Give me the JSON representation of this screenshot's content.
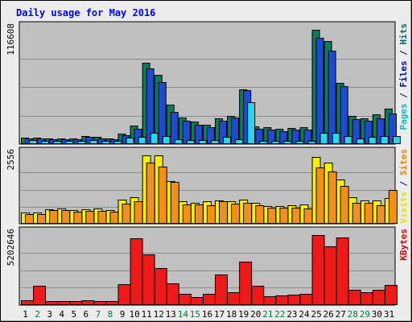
{
  "chart_data": {
    "type": "bar",
    "title": "Daily usage for May 2016",
    "categories": [
      "1",
      "2",
      "3",
      "4",
      "5",
      "6",
      "7",
      "8",
      "9",
      "10",
      "11",
      "12",
      "13",
      "14",
      "15",
      "16",
      "17",
      "18",
      "19",
      "20",
      "21",
      "22",
      "23",
      "24",
      "25",
      "26",
      "27",
      "28",
      "29",
      "30",
      "31"
    ],
    "weekend": [
      false,
      true,
      false,
      false,
      false,
      false,
      true,
      true,
      false,
      false,
      false,
      false,
      false,
      true,
      true,
      false,
      false,
      false,
      false,
      false,
      true,
      true,
      false,
      false,
      false,
      false,
      false,
      true,
      true,
      false,
      false
    ],
    "panels": [
      {
        "name": "pages-files-hits",
        "scale_label": "116608",
        "ymax": 116608,
        "axis_legend": [
          {
            "text": "Hits",
            "color": "#006666"
          },
          {
            "text": " / ",
            "color": "#000080"
          },
          {
            "text": "Files",
            "color": "#0000c0"
          },
          {
            "text": " / ",
            "color": "#000080"
          },
          {
            "text": "Pages",
            "color": "#00c0c0"
          }
        ],
        "series": [
          {
            "name": "Hits",
            "color": "#0e7a5c",
            "values": [
              6700,
              6200,
              6000,
              5500,
              6000,
              8300,
              7200,
              6000,
              10800,
              19000,
              83000,
              71000,
              40000,
              27000,
              23000,
              20000,
              26200,
              28500,
              56000,
              18000,
              17100,
              15200,
              16700,
              17100,
              116600,
              105000,
              62000,
              28500,
              26500,
              30000,
              36000
            ]
          },
          {
            "name": "Files",
            "color": "#1e4bd0",
            "values": [
              6000,
              5500,
              5200,
              4800,
              5200,
              7000,
              6000,
              5200,
              9000,
              16000,
              77000,
              63000,
              33000,
              24000,
              20000,
              17000,
              24000,
              27000,
              55000,
              15300,
              14800,
              12800,
              14800,
              15000,
              108000,
              95000,
              59000,
              25500,
              23700,
              26600,
              31000
            ]
          },
          {
            "name": "Pages",
            "color": "#2ad6ec",
            "values": [
              4300,
              3500,
              3200,
              3000,
              3300,
              4200,
              3300,
              3200,
              6200,
              7700,
              11500,
              8000,
              5000,
              4400,
              4200,
              4500,
              7000,
              4800,
              43000,
              3600,
              3500,
              3000,
              3400,
              3500,
              11900,
              11700,
              8300,
              5600,
              7100,
              8400,
              8600
            ]
          }
        ]
      },
      {
        "name": "visits-sites",
        "scale_label": "2556",
        "ymax": 2556,
        "axis_legend": [
          {
            "text": "Sites",
            "color": "#f08000"
          },
          {
            "text": " / ",
            "color": "#000080"
          },
          {
            "text": "Visits",
            "color": "#e0e000"
          }
        ],
        "series": [
          {
            "name": "Visits",
            "color": "#f8f000",
            "values": [
              420,
              410,
              550,
              560,
              500,
              540,
              570,
              520,
              900,
              1000,
              2550,
              2550,
              1600,
              850,
              790,
              830,
              880,
              840,
              900,
              780,
              650,
              650,
              680,
              730,
              2500,
              2300,
              1650,
              990,
              870,
              880,
              960
            ]
          },
          {
            "name": "Sites",
            "color": "#f0901c",
            "values": [
              360,
              360,
              500,
              500,
              460,
              480,
              470,
              440,
              740,
              850,
              2300,
              2150,
              1550,
              710,
              720,
              700,
              850,
              760,
              780,
              700,
              590,
              590,
              600,
              560,
              2100,
              1950,
              1400,
              790,
              780,
              680,
              1250
            ]
          }
        ]
      },
      {
        "name": "kbytes",
        "scale_label": "5202646",
        "ymax": 5202646,
        "axis_legend": [
          {
            "text": "KBytes",
            "color": "#e00000"
          }
        ],
        "series": [
          {
            "name": "KBytes",
            "color": "#ee1a1a",
            "values": [
              380000,
              1460000,
              290000,
              300000,
              290000,
              340000,
              300000,
              300000,
              1570000,
              4960000,
              3780000,
              2780000,
              1590000,
              860000,
              620000,
              810000,
              2260000,
              940000,
              3250000,
              1430000,
              670000,
              690000,
              750000,
              850000,
              5200000,
              4370000,
              5040000,
              1120000,
              940000,
              1110000,
              1470000
            ]
          }
        ]
      }
    ]
  }
}
